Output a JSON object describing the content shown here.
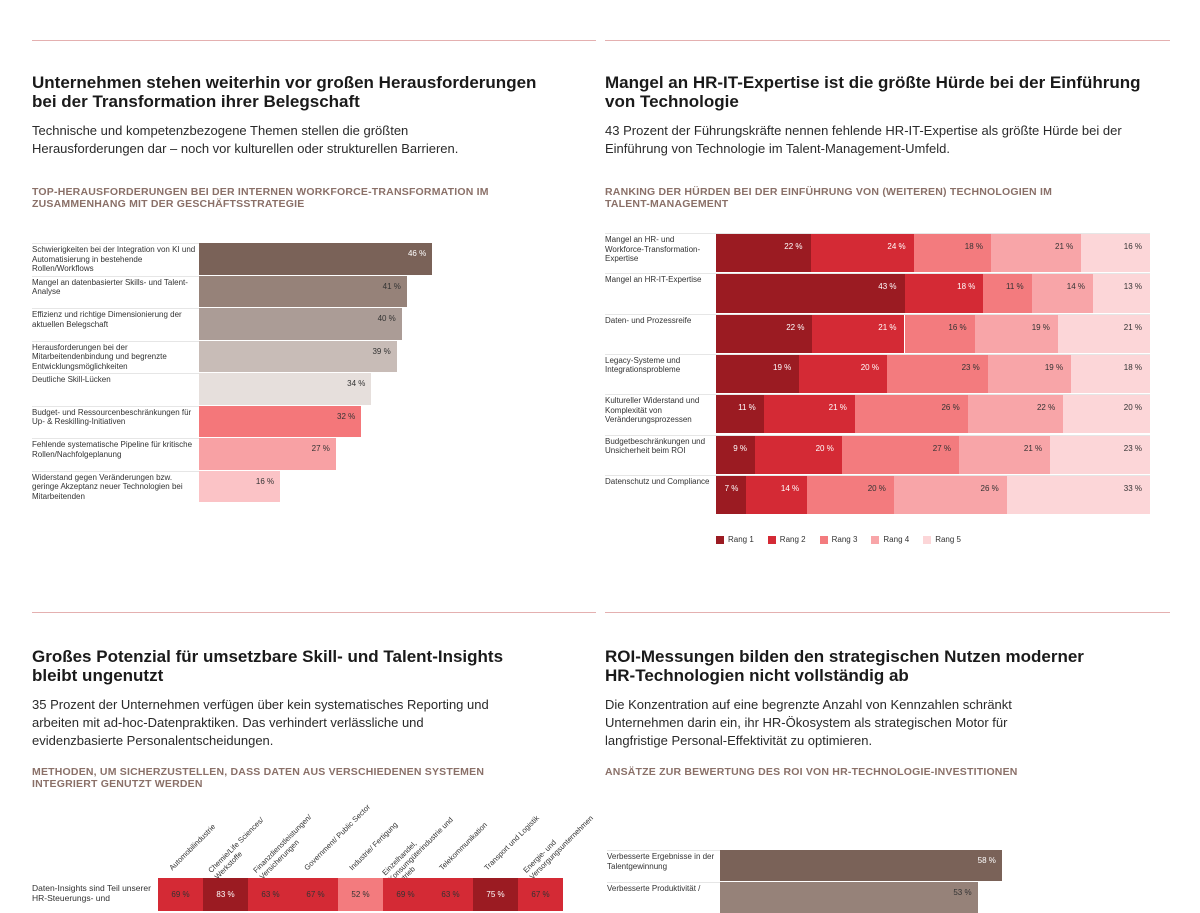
{
  "panels": {
    "top_left": {
      "title": "Unternehmen stehen weiterhin vor großen Herausforderungen bei der Transformation ihrer Belegschaft",
      "subtitle": "Technische und kompetenzbezogene Themen stellen die größten Herausforderungen dar – noch vor kulturellen oder strukturellen Barrieren.",
      "chart_label": "TOP-HERAUSFORDERUNGEN BEI DER INTERNEN WORKFORCE-TRANSFORMATION IM ZUSAMMENHANG MIT DER GESCHÄFTSSTRATEGIE"
    },
    "top_right": {
      "title": "Mangel an HR-IT-Expertise ist die größte Hürde bei der Einführung von Technologie",
      "subtitle": "43 Prozent der Führungskräfte nennen fehlende HR-IT-Expertise als größte Hürde bei der Einführung von Technologie im Talent-Management-Umfeld.",
      "chart_label": "RANKING DER HÜRDEN BEI DER EINFÜHRUNG VON (WEITEREN) TECHNOLOGIEN IM TALENT-MANAGEMENT"
    },
    "bottom_left": {
      "title": "Großes Potenzial für umsetzbare Skill- und Talent-Insights bleibt ungenutzt",
      "subtitle": "35 Prozent der Unternehmen verfügen über kein systematisches Reporting und arbeiten mit ad-hoc-Datenpraktiken. Das verhindert verlässliche und evidenzbasierte Personalentscheidungen.",
      "chart_label": "METHODEN, UM SICHERZUSTELLEN, DASS DATEN AUS VERSCHIEDENEN SYSTEMEN INTEGRIERT GENUTZT WERDEN"
    },
    "bottom_right": {
      "title": "ROI-Messungen bilden den strategischen Nutzen moderner HR-Technologien nicht vollständig ab",
      "subtitle": "Die Konzentration auf eine begrenzte Anzahl von Kennzahlen schränkt Unternehmen darin ein, ihr HR-Ökosystem als strategischen Motor für langfristige Personal-Effektivität zu optimieren.",
      "chart_label": "ANSÄTZE ZUR BEWERTUNG DES ROI VON HR-TECHNOLOGIE-INVESTITIONEN"
    }
  },
  "chart_data": [
    {
      "type": "bar",
      "orientation": "horizontal",
      "categories": [
        "Schwierigkeiten bei der Integration von KI und Automatisierung in bestehende Rollen/Workflows",
        "Mangel an datenbasierter Skills- und Talent-Analyse",
        "Effizienz und richtige Dimensionierung der aktuellen Belegschaft",
        "Herausforderungen bei der Mitarbeitendenbindung und begrenzte Entwicklungsmöglichkeiten",
        "Deutliche Skill-Lücken",
        "Budget- und Ressourcenbeschränkungen für Up- & Reskilling-Initiativen",
        "Fehlende systematische Pipeline für kritische Rollen/Nachfolgeplanung",
        "Widerstand gegen Veränderungen bzw. geringe Akzeptanz neuer Technologien bei Mitarbeitenden"
      ],
      "values": [
        46,
        41,
        40,
        39,
        34,
        32,
        27,
        16
      ],
      "value_labels": [
        "46 %",
        "41 %",
        "40 %",
        "39 %",
        "34 %",
        "32 %",
        "27 %",
        "16 %"
      ],
      "colors": [
        "#7a6258",
        "#968279",
        "#ab9c96",
        "#c8bcb7",
        "#e6dfdc",
        "#f4777a",
        "#f8a1a4",
        "#fbc3c6"
      ],
      "unit": "%"
    },
    {
      "type": "bar",
      "stacked": true,
      "orientation": "horizontal",
      "categories": [
        "Mangel an HR- und Workforce-Transformation-Expertise",
        "Mangel an HR-IT-Expertise",
        "Daten- und Prozessreife",
        "Legacy-Systeme und Integrationsprobleme",
        "Kultureller Widerstand und Komplexität von Veränderungsprozessen",
        "Budgetbeschränkungen und Unsicherheit beim ROI",
        "Datenschutz und Compliance"
      ],
      "series": [
        {
          "name": "Rang 1",
          "color": "#9b1b22",
          "values": [
            22,
            43,
            22,
            19,
            11,
            9,
            7
          ]
        },
        {
          "name": "Rang 2",
          "color": "#d42a35",
          "values": [
            24,
            18,
            21,
            20,
            21,
            20,
            14
          ]
        },
        {
          "name": "Rang 3",
          "color": "#f37b7e",
          "values": [
            18,
            11,
            16,
            23,
            26,
            27,
            20
          ]
        },
        {
          "name": "Rang 4",
          "color": "#f8a5a8",
          "values": [
            21,
            14,
            19,
            19,
            22,
            21,
            26
          ]
        },
        {
          "name": "Rang 5",
          "color": "#fcd6d8",
          "values": [
            16,
            13,
            21,
            18,
            20,
            23,
            33
          ]
        }
      ],
      "legend": "bottom-left",
      "unit": "%"
    },
    {
      "type": "heatmap",
      "columns": [
        "Automobilindustrie",
        "Chemie/Life Sciences/ Werkstoffe",
        "Finanzdienstleistungen/ Versicherungen",
        "Government/ Public Sector",
        "Industrie/ Fertigung",
        "Einzelhandel, Konsumgüterindustrie und Vertrieb",
        "Telekommunikation",
        "Transport und Logistik",
        "Energie- und Versorgungsunternehmen"
      ],
      "rows": [
        {
          "label": "Daten-Insights sind Teil unserer HR-Steuerungs- und",
          "values": [
            69,
            83,
            63,
            67,
            52,
            69,
            63,
            75,
            67
          ],
          "value_labels": [
            "69 %",
            "83 %",
            "63 %",
            "67 %",
            "52 %",
            "69 %",
            "63 %",
            "75 %",
            "67 %"
          ]
        }
      ],
      "unit": "%"
    },
    {
      "type": "bar",
      "orientation": "horizontal",
      "categories": [
        "Verbesserte Ergebnisse in der Talentgewinnung",
        "Verbesserte Produktivität /"
      ],
      "values": [
        58,
        53
      ],
      "value_labels": [
        "58 %",
        "53 %"
      ],
      "colors": [
        "#7a6258",
        "#968279"
      ],
      "unit": "%"
    }
  ]
}
